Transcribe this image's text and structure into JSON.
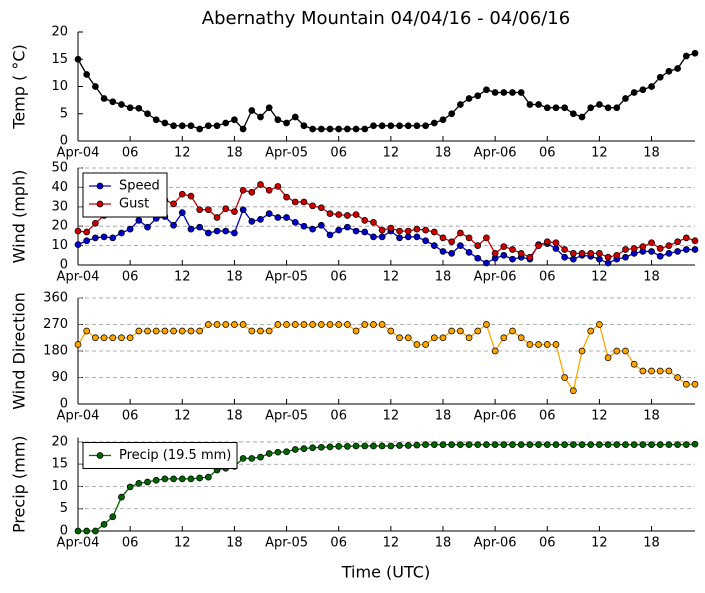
{
  "chart_data": {
    "type": "line",
    "title": "Abernathy Mountain 04/04/16 - 04/06/16",
    "xlabel": "Time (UTC)",
    "x": [
      0,
      1,
      2,
      3,
      4,
      5,
      6,
      7,
      8,
      9,
      10,
      11,
      12,
      13,
      14,
      15,
      16,
      17,
      18,
      19,
      20,
      21,
      22,
      23,
      24,
      25,
      26,
      27,
      28,
      29,
      30,
      31,
      32,
      33,
      34,
      35,
      36,
      37,
      38,
      39,
      40,
      41,
      42,
      43,
      44,
      45,
      46,
      47,
      48,
      49,
      50,
      51,
      52,
      53,
      54,
      55,
      56,
      57,
      58,
      59,
      60,
      61,
      62,
      63,
      64,
      65,
      66,
      67,
      68,
      69,
      70,
      71
    ],
    "xlim": [
      0,
      71
    ],
    "xticks": [
      {
        "value": 0,
        "label": "Apr-04"
      },
      {
        "value": 6,
        "label": "06"
      },
      {
        "value": 12,
        "label": "12"
      },
      {
        "value": 18,
        "label": "18"
      },
      {
        "value": 24,
        "label": "Apr-05"
      },
      {
        "value": 30,
        "label": "06"
      },
      {
        "value": 36,
        "label": "12"
      },
      {
        "value": 42,
        "label": "18"
      },
      {
        "value": 48,
        "label": "Apr-06"
      },
      {
        "value": 54,
        "label": "06"
      },
      {
        "value": 60,
        "label": "12"
      },
      {
        "value": 66,
        "label": "18"
      }
    ],
    "panels": [
      {
        "ylabel": "Temp ( °C)",
        "ylim": [
          0,
          20
        ],
        "yticks": [
          0,
          5,
          10,
          15,
          20
        ],
        "grid": false,
        "series": [
          {
            "color": "#000000",
            "values": [
              15,
              12.2,
              10,
              7.8,
              7.2,
              6.7,
              6.1,
              6.0,
              5.0,
              3.9,
              3.3,
              2.8,
              2.8,
              2.8,
              2.2,
              2.8,
              2.8,
              3.3,
              3.9,
              2.2,
              5.6,
              4.4,
              6.1,
              3.9,
              3.3,
              4.4,
              2.8,
              2.2,
              2.2,
              2.2,
              2.2,
              2.2,
              2.2,
              2.2,
              2.8,
              2.8,
              2.8,
              2.8,
              2.8,
              2.8,
              2.8,
              3.3,
              3.9,
              5.0,
              6.7,
              7.8,
              8.3,
              9.4,
              8.9,
              8.9,
              8.9,
              8.9,
              6.7,
              6.7,
              6.1,
              6.1,
              6.1,
              5.0,
              4.4,
              6.1,
              6.7,
              6.1,
              6.1,
              7.8,
              8.9,
              9.4,
              10.0,
              11.7,
              12.8,
              13.3,
              15.6,
              16.1
            ]
          }
        ]
      },
      {
        "ylabel": "Wind (mph)",
        "ylim": [
          0,
          50
        ],
        "yticks": [
          0,
          10,
          20,
          30,
          40,
          50
        ],
        "grid": true,
        "legend": "upper left",
        "series": [
          {
            "name": "Speed",
            "color": "#0000cc",
            "values": [
              10.5,
              12.5,
              14,
              14.5,
              14,
              16.5,
              18.5,
              23,
              19.5,
              24,
              25,
              20.5,
              27,
              18.5,
              19.5,
              16.5,
              17.5,
              17.5,
              16.5,
              28.5,
              22.5,
              23.5,
              26.5,
              24.5,
              24.5,
              22,
              20,
              18.5,
              20.5,
              15.5,
              18,
              19.5,
              17.5,
              17,
              14.5,
              14.5,
              17.5,
              14,
              14.5,
              14.5,
              12.5,
              10,
              7,
              6,
              10,
              6.5,
              3.5,
              1,
              3.5,
              5,
              3,
              4,
              3,
              10.5,
              11,
              8.5,
              4,
              3,
              5,
              4.5,
              3,
              1,
              3,
              4,
              6,
              7,
              7,
              4.5,
              6,
              7,
              8,
              8
            ]
          },
          {
            "name": "Gust",
            "color": "#cc0000",
            "values": [
              17.5,
              17,
              21.5,
              25.5,
              29,
              31,
              32,
              33,
              33.5,
              33,
              33.5,
              31.5,
              36.5,
              35.5,
              28.5,
              28.5,
              24.5,
              29,
              27.5,
              38.5,
              37.5,
              41.5,
              38.5,
              40.5,
              35,
              32.5,
              32.5,
              30.5,
              29.5,
              26.5,
              26,
              25.5,
              26,
              23,
              22,
              18,
              19,
              17.5,
              17.5,
              18.5,
              18,
              17,
              14,
              12,
              16.5,
              14,
              10,
              14,
              6,
              9.5,
              8,
              6,
              4,
              10,
              12,
              11.5,
              8,
              6,
              6,
              6,
              6,
              4,
              5,
              8,
              8.5,
              9.5,
              11.5,
              8.5,
              10,
              12,
              14,
              12.5
            ]
          }
        ]
      },
      {
        "ylabel": "Wind Direction",
        "ylim": [
          0,
          360
        ],
        "yticks": [
          0,
          90,
          180,
          270,
          360
        ],
        "grid": true,
        "series": [
          {
            "color": "#ffa500",
            "values": [
              202,
              248,
              225,
              225,
              225,
              225,
              225,
              248,
              248,
              248,
              248,
              248,
              248,
              248,
              248,
              270,
              270,
              270,
              270,
              270,
              248,
              248,
              248,
              270,
              270,
              270,
              270,
              270,
              270,
              270,
              270,
              270,
              248,
              270,
              270,
              270,
              248,
              225,
              225,
              202,
              202,
              225,
              225,
              248,
              248,
              225,
              248,
              270,
              180,
              225,
              248,
              225,
              202,
              202,
              202,
              202,
              90,
              45,
              180,
              248,
              270,
              157,
              180,
              180,
              135,
              112,
              112,
              112,
              112,
              90,
              67,
              67
            ]
          }
        ]
      },
      {
        "ylabel": "Precip (mm)",
        "ylim": [
          0,
          21
        ],
        "yticks": [
          0,
          5,
          10,
          15,
          20
        ],
        "grid": true,
        "legend": "upper left",
        "series": [
          {
            "name": "Precip (19.5 mm)",
            "color": "#006400",
            "values": [
              0,
              0,
              0,
              1.5,
              3.2,
              7.6,
              9.9,
              10.7,
              11,
              11.4,
              11.7,
              11.7,
              11.7,
              11.7,
              11.9,
              12.1,
              13.7,
              14.1,
              14.5,
              16.3,
              16.3,
              16.6,
              17.4,
              17.7,
              17.8,
              18.3,
              18.5,
              18.7,
              18.8,
              18.9,
              19.0,
              19.0,
              19.1,
              19.1,
              19.1,
              19.1,
              19.1,
              19.2,
              19.2,
              19.3,
              19.4,
              19.4,
              19.4,
              19.4,
              19.4,
              19.4,
              19.4,
              19.4,
              19.4,
              19.4,
              19.4,
              19.4,
              19.4,
              19.4,
              19.4,
              19.4,
              19.4,
              19.4,
              19.4,
              19.4,
              19.4,
              19.4,
              19.4,
              19.4,
              19.4,
              19.4,
              19.4,
              19.4,
              19.4,
              19.4,
              19.4,
              19.5
            ]
          }
        ]
      }
    ]
  }
}
